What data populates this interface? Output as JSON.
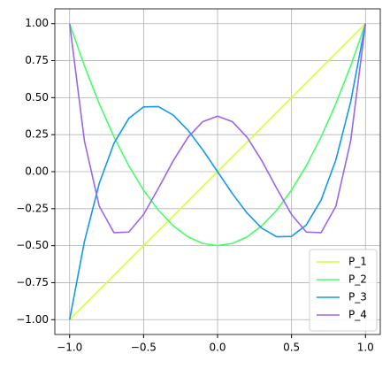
{
  "chart_data": {
    "type": "line",
    "x": [
      -1,
      -0.9,
      -0.8,
      -0.7,
      -0.6,
      -0.5,
      -0.4,
      -0.3,
      -0.2,
      -0.1,
      0,
      0.1,
      0.2,
      0.3,
      0.4,
      0.5,
      0.6,
      0.7,
      0.8,
      0.9,
      1
    ],
    "series": [
      {
        "name": "P_1",
        "color": "#d4ff3c",
        "values": [
          -1,
          -0.9,
          -0.8,
          -0.7,
          -0.6,
          -0.5,
          -0.4,
          -0.3,
          -0.2,
          -0.1,
          0,
          0.1,
          0.2,
          0.3,
          0.4,
          0.5,
          0.6,
          0.7,
          0.8,
          0.9,
          1
        ]
      },
      {
        "name": "P_2",
        "color": "#44ff66",
        "values": [
          1,
          0.715,
          0.46,
          0.235,
          0.04,
          -0.125,
          -0.26,
          -0.365,
          -0.44,
          -0.485,
          -0.5,
          -0.485,
          -0.44,
          -0.365,
          -0.26,
          -0.125,
          0.04,
          0.235,
          0.46,
          0.715,
          1
        ]
      },
      {
        "name": "P_3",
        "color": "#1199ee",
        "values": [
          -1,
          -0.4725,
          -0.08,
          0.1925,
          0.36,
          0.4375,
          0.44,
          0.3825,
          0.28,
          0.1475,
          0,
          -0.1475,
          -0.28,
          -0.3825,
          -0.44,
          -0.4375,
          -0.36,
          -0.1925,
          0.08,
          0.4725,
          1
        ]
      },
      {
        "name": "P_4",
        "color": "#9966ee",
        "values": [
          1,
          0.2079,
          -0.233,
          -0.4121,
          -0.408,
          -0.2891,
          -0.113,
          0.0729,
          0.232,
          0.3379,
          0.375,
          0.3379,
          0.232,
          0.0729,
          -0.113,
          -0.2891,
          -0.408,
          -0.4121,
          -0.233,
          0.2079,
          1
        ]
      }
    ],
    "xlim": [
      -1.1,
      1.1
    ],
    "ylim": [
      -1.1,
      1.1
    ],
    "xticks": [
      {
        "value": -1,
        "label": "−1.0"
      },
      {
        "value": -0.5,
        "label": "−0.5"
      },
      {
        "value": 0,
        "label": "0.0"
      },
      {
        "value": 0.5,
        "label": "0.5"
      },
      {
        "value": 1,
        "label": "1.0"
      }
    ],
    "yticks": [
      {
        "value": -1,
        "label": "−1.00"
      },
      {
        "value": -0.75,
        "label": "−0.75"
      },
      {
        "value": -0.5,
        "label": "−0.50"
      },
      {
        "value": -0.25,
        "label": "−0.25"
      },
      {
        "value": 0,
        "label": "0.00"
      },
      {
        "value": 0.25,
        "label": "0.25"
      },
      {
        "value": 0.5,
        "label": "0.50"
      },
      {
        "value": 0.75,
        "label": "0.75"
      },
      {
        "value": 1,
        "label": "1.00"
      }
    ],
    "grid": true,
    "legend": "lower right"
  }
}
